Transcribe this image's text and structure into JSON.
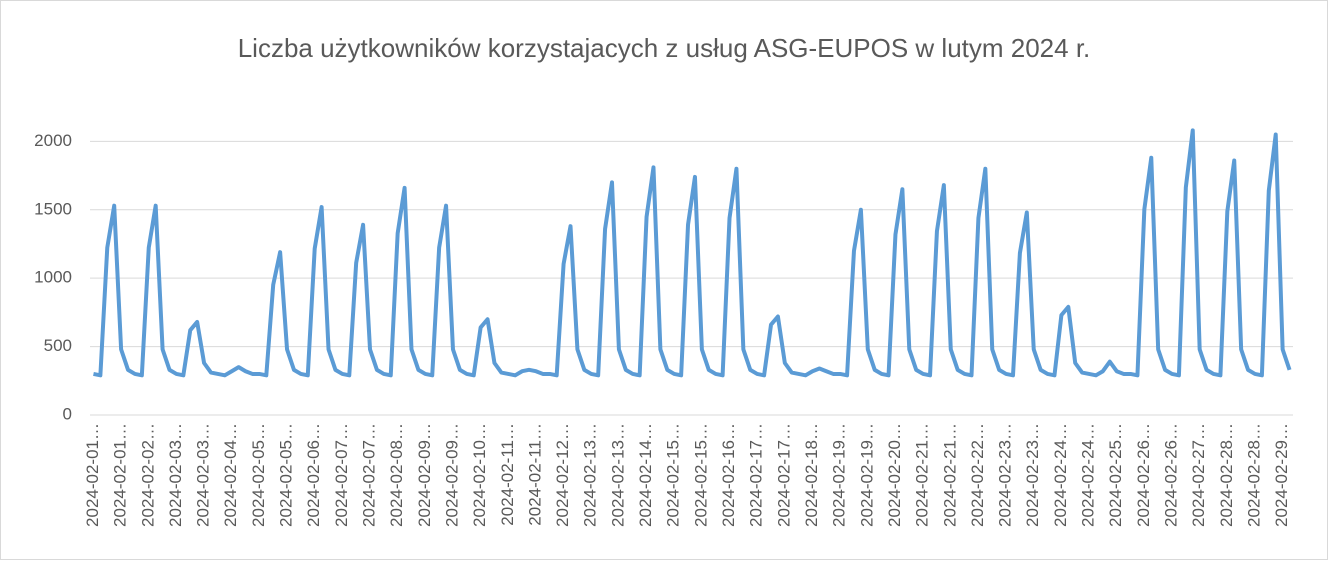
{
  "chart_data": {
    "type": "line",
    "title": "Liczba użytkowników korzystajacych z usług ASG-EUPOS w lutym 2024 r.",
    "categories": [
      "2024-02-01…",
      null,
      null,
      null,
      "2024-02-01…",
      null,
      null,
      null,
      "2024-02-02…",
      null,
      null,
      null,
      "2024-02-03…",
      null,
      null,
      null,
      "2024-02-03…",
      null,
      null,
      null,
      "2024-02-04…",
      null,
      null,
      null,
      "2024-02-05…",
      null,
      null,
      null,
      "2024-02-05…",
      null,
      null,
      null,
      "2024-02-06…",
      null,
      null,
      null,
      "2024-02-07…",
      null,
      null,
      null,
      "2024-02-07…",
      null,
      null,
      null,
      "2024-02-08…",
      null,
      null,
      null,
      "2024-02-09…",
      null,
      null,
      null,
      "2024-02-09…",
      null,
      null,
      null,
      "2024-02-10…",
      null,
      null,
      null,
      "2024-02-11…",
      null,
      null,
      null,
      "2024-02-11…",
      null,
      null,
      null,
      "2024-02-12…",
      null,
      null,
      null,
      "2024-02-13…",
      null,
      null,
      null,
      "2024-02-13…",
      null,
      null,
      null,
      "2024-02-14…",
      null,
      null,
      null,
      "2024-02-15…",
      null,
      null,
      null,
      "2024-02-15…",
      null,
      null,
      null,
      "2024-02-16…",
      null,
      null,
      null,
      "2024-02-17…",
      null,
      null,
      null,
      "2024-02-17…",
      null,
      null,
      null,
      "2024-02-18…",
      null,
      null,
      null,
      "2024-02-19…",
      null,
      null,
      null,
      "2024-02-19…",
      null,
      null,
      null,
      "2024-02-20…",
      null,
      null,
      null,
      "2024-02-21…",
      null,
      null,
      null,
      "2024-02-21…",
      null,
      null,
      null,
      "2024-02-22…",
      null,
      null,
      null,
      "2024-02-23…",
      null,
      null,
      null,
      "2024-02-23…",
      null,
      null,
      null,
      "2024-02-24…",
      null,
      null,
      null,
      "2024-02-24…",
      null,
      null,
      null,
      "2024-02-25…",
      null,
      null,
      null,
      "2024-02-26…",
      null,
      null,
      null,
      "2024-02-26…",
      null,
      null,
      null,
      "2024-02-27…",
      null,
      null,
      null,
      "2024-02-28…",
      null,
      null,
      null,
      "2024-02-28…",
      null,
      null,
      null,
      "2024-02-29…",
      null
    ],
    "values": [
      300,
      290,
      1224,
      1530,
      480,
      330,
      300,
      290,
      1224,
      1530,
      480,
      330,
      300,
      290,
      620,
      680,
      380,
      310,
      300,
      290,
      320,
      350,
      320,
      300,
      300,
      290,
      952,
      1190,
      480,
      330,
      300,
      290,
      1216,
      1520,
      480,
      330,
      300,
      290,
      1112,
      1390,
      480,
      330,
      300,
      290,
      1328,
      1660,
      480,
      330,
      300,
      290,
      1224,
      1530,
      480,
      330,
      300,
      290,
      640,
      700,
      380,
      310,
      300,
      290,
      320,
      330,
      320,
      300,
      300,
      290,
      1104,
      1380,
      480,
      330,
      300,
      290,
      1360,
      1700,
      480,
      330,
      300,
      290,
      1448,
      1810,
      480,
      330,
      300,
      290,
      1392,
      1740,
      480,
      330,
      300,
      290,
      1440,
      1800,
      480,
      330,
      300,
      290,
      660,
      720,
      380,
      310,
      300,
      290,
      320,
      340,
      320,
      300,
      300,
      290,
      1200,
      1500,
      480,
      330,
      300,
      290,
      1320,
      1650,
      480,
      330,
      300,
      290,
      1344,
      1680,
      480,
      330,
      300,
      290,
      1440,
      1800,
      480,
      330,
      300,
      290,
      1184,
      1480,
      480,
      330,
      300,
      290,
      730,
      790,
      380,
      310,
      300,
      290,
      320,
      390,
      320,
      300,
      300,
      290,
      1504,
      1880,
      480,
      330,
      300,
      290,
      1664,
      2080,
      480,
      330,
      300,
      290,
      1488,
      1860,
      480,
      330,
      300,
      290,
      1640,
      2050,
      480,
      330
    ],
    "color": "#5b9bd5",
    "ylim": [
      0,
      2200
    ],
    "yticks": [
      0,
      500,
      1000,
      1500,
      2000
    ],
    "grid": true
  }
}
